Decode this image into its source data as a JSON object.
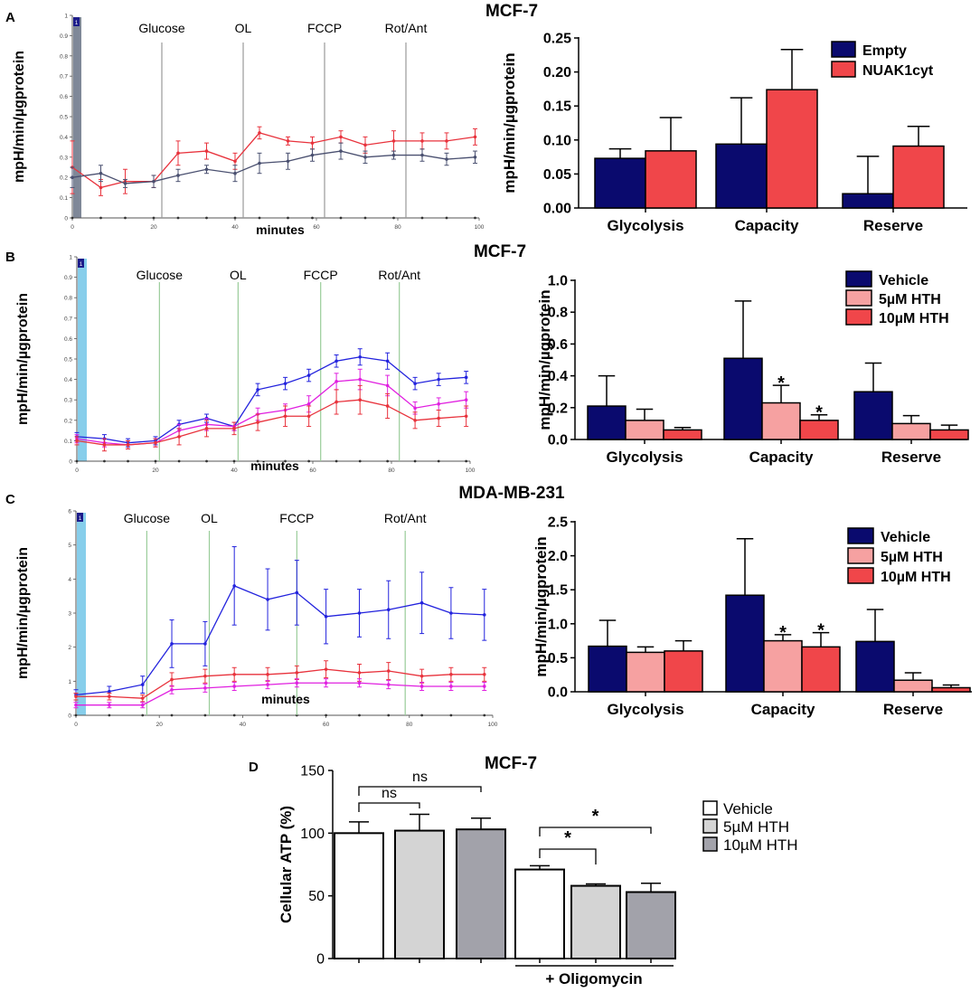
{
  "colors": {
    "navy": "#0a0a6e",
    "red": "#f0464a",
    "pink": "#f6a1a1",
    "seahorse_red": "#e8323c",
    "seahorse_gray": "#4a5070",
    "blue": "#2222dd",
    "magenta": "#e020e0",
    "marker_green": "#99cc99",
    "inj_blue": "#87ceeb",
    "inj_gray": "#7f8898",
    "atp_light": "#d4d4d4",
    "atp_dark": "#a2a2aa"
  },
  "panel_letters": [
    "A",
    "B",
    "C",
    "D"
  ],
  "chart_data": [
    {
      "id": "A-trace",
      "type": "line",
      "title": "",
      "xlabel": "minutes",
      "ylabel": "mpH/min/µgprotein",
      "xlim": [
        0,
        100
      ],
      "ylim": [
        0,
        1
      ],
      "xticks": [
        "0",
        "20",
        "40",
        "60",
        "80",
        "100"
      ],
      "yticks": [
        "0",
        "0.1",
        "0.2",
        "0.3",
        "0.4",
        "0.5",
        "0.6",
        "0.7",
        "0.8",
        "0.9",
        "1"
      ],
      "injections": [
        {
          "label": "Glucose",
          "x": 22
        },
        {
          "label": "OL",
          "x": 42
        },
        {
          "label": "FCCP",
          "x": 62
        },
        {
          "label": "Rot/Ant",
          "x": 82
        }
      ],
      "injection_badge": "1",
      "x": [
        0,
        7,
        13,
        20,
        26,
        33,
        40,
        46,
        53,
        59,
        66,
        72,
        79,
        86,
        92,
        99
      ],
      "series": [
        {
          "name": "NUAK1cyt",
          "color": "#e8323c",
          "values": [
            0.25,
            0.15,
            0.18,
            0.18,
            0.32,
            0.33,
            0.28,
            0.42,
            0.38,
            0.37,
            0.4,
            0.36,
            0.38,
            0.38,
            0.38,
            0.4
          ],
          "errors": [
            0.13,
            0.04,
            0.06,
            0.03,
            0.06,
            0.04,
            0.04,
            0.03,
            0.02,
            0.03,
            0.03,
            0.04,
            0.05,
            0.04,
            0.04,
            0.04
          ]
        },
        {
          "name": "Empty",
          "color": "#4a5070",
          "values": [
            0.2,
            0.22,
            0.17,
            0.18,
            0.21,
            0.24,
            0.22,
            0.27,
            0.28,
            0.31,
            0.33,
            0.3,
            0.31,
            0.31,
            0.29,
            0.3
          ],
          "errors": [
            0.05,
            0.04,
            0.02,
            0.03,
            0.03,
            0.02,
            0.04,
            0.05,
            0.04,
            0.03,
            0.04,
            0.03,
            0.02,
            0.03,
            0.03,
            0.03
          ]
        }
      ]
    },
    {
      "id": "A-bar",
      "type": "bar",
      "title": "MCF-7",
      "ylabel": "mpH/min/µgprotein",
      "ylim": [
        0,
        0.25
      ],
      "yticks": [
        "0.00",
        "0.05",
        "0.10",
        "0.15",
        "0.20",
        "0.25"
      ],
      "categories": [
        "Glycolysis",
        "Capacity",
        "Reserve"
      ],
      "series": [
        {
          "name": "Empty",
          "color": "#0a0a6e",
          "values": [
            0.073,
            0.094,
            0.021
          ],
          "errors": [
            0.014,
            0.068,
            0.055
          ]
        },
        {
          "name": "NUAK1cyt",
          "color": "#f0464a",
          "values": [
            0.084,
            0.174,
            0.091
          ],
          "errors": [
            0.049,
            0.059,
            0.029
          ]
        }
      ],
      "annotations": []
    },
    {
      "id": "B-trace",
      "type": "line",
      "title": "",
      "xlabel": "minutes",
      "ylabel": "mpH/min/µgprotein",
      "xlim": [
        0,
        100
      ],
      "ylim": [
        0,
        1
      ],
      "xticks": [
        "0",
        "20",
        "40",
        "60",
        "80",
        "100"
      ],
      "yticks": [
        "0",
        "0.1",
        "0.2",
        "0.3",
        "0.4",
        "0.5",
        "0.6",
        "0.7",
        "0.8",
        "0.9",
        "1"
      ],
      "injections": [
        {
          "label": "Glucose",
          "x": 21
        },
        {
          "label": "OL",
          "x": 41
        },
        {
          "label": "FCCP",
          "x": 62
        },
        {
          "label": "Rot/Ant",
          "x": 82
        }
      ],
      "injection_badge": "1",
      "x": [
        0,
        7,
        13,
        20,
        26,
        33,
        40,
        46,
        53,
        59,
        66,
        72,
        79,
        86,
        92,
        99
      ],
      "series": [
        {
          "name": "Vehicle",
          "color": "#2222dd",
          "values": [
            0.12,
            0.11,
            0.09,
            0.1,
            0.18,
            0.21,
            0.17,
            0.35,
            0.38,
            0.42,
            0.49,
            0.51,
            0.49,
            0.38,
            0.4,
            0.41
          ],
          "errors": [
            0.02,
            0.02,
            0.02,
            0.02,
            0.02,
            0.02,
            0.02,
            0.03,
            0.03,
            0.03,
            0.03,
            0.04,
            0.04,
            0.03,
            0.03,
            0.03
          ]
        },
        {
          "name": "5µM HTH",
          "color": "#e020e0",
          "values": [
            0.11,
            0.09,
            0.08,
            0.09,
            0.15,
            0.18,
            0.17,
            0.23,
            0.25,
            0.28,
            0.39,
            0.4,
            0.37,
            0.26,
            0.28,
            0.3
          ],
          "errors": [
            0.02,
            0.02,
            0.02,
            0.02,
            0.03,
            0.03,
            0.02,
            0.03,
            0.03,
            0.04,
            0.04,
            0.05,
            0.05,
            0.03,
            0.03,
            0.04
          ]
        },
        {
          "name": "10µM HTH",
          "color": "#e8323c",
          "values": [
            0.1,
            0.08,
            0.08,
            0.09,
            0.12,
            0.16,
            0.16,
            0.19,
            0.22,
            0.22,
            0.29,
            0.3,
            0.27,
            0.2,
            0.21,
            0.22
          ],
          "errors": [
            0.02,
            0.03,
            0.02,
            0.02,
            0.04,
            0.04,
            0.03,
            0.04,
            0.05,
            0.05,
            0.06,
            0.07,
            0.06,
            0.04,
            0.04,
            0.05
          ]
        }
      ]
    },
    {
      "id": "B-bar",
      "type": "bar",
      "title": "MCF-7",
      "ylabel": "mpH/min/µgprotein",
      "ylim": [
        0,
        1.0
      ],
      "yticks": [
        "0.0",
        "0.2",
        "0.4",
        "0.6",
        "0.8",
        "1.0"
      ],
      "categories": [
        "Glycolysis",
        "Capacity",
        "Reserve"
      ],
      "series": [
        {
          "name": "Vehicle",
          "color": "#0a0a6e",
          "values": [
            0.21,
            0.51,
            0.3
          ],
          "errors": [
            0.19,
            0.36,
            0.18
          ]
        },
        {
          "name": "5µM HTH",
          "color": "#f6a1a1",
          "values": [
            0.12,
            0.23,
            0.1
          ],
          "errors": [
            0.07,
            0.11,
            0.05
          ]
        },
        {
          "name": "10µM HTH",
          "color": "#f0464a",
          "values": [
            0.06,
            0.12,
            0.06
          ],
          "errors": [
            0.015,
            0.035,
            0.03
          ]
        }
      ],
      "annotations": [
        {
          "category": 1,
          "series": 1,
          "text": "*"
        },
        {
          "category": 1,
          "series": 2,
          "text": "*"
        }
      ]
    },
    {
      "id": "C-trace",
      "type": "line",
      "title": "",
      "xlabel": "minutes",
      "ylabel": "mpH/min/µgprotein",
      "xlim": [
        0,
        100
      ],
      "ylim": [
        0,
        6
      ],
      "xticks": [
        "0",
        "20",
        "40",
        "60",
        "80",
        "100"
      ],
      "yticks": [
        "0",
        "1",
        "2",
        "3",
        "4",
        "5",
        "6"
      ],
      "injections": [
        {
          "label": "Glucose",
          "x": 17
        },
        {
          "label": "OL",
          "x": 32
        },
        {
          "label": "FCCP",
          "x": 53
        },
        {
          "label": "Rot/Ant",
          "x": 79
        }
      ],
      "injection_badge": "1",
      "x": [
        0,
        8,
        16,
        23,
        31,
        38,
        46,
        53,
        60,
        68,
        75,
        83,
        90,
        98
      ],
      "series": [
        {
          "name": "Vehicle",
          "color": "#2222dd",
          "values": [
            0.6,
            0.7,
            0.9,
            2.1,
            2.1,
            3.8,
            3.4,
            3.6,
            2.9,
            3.0,
            3.1,
            3.3,
            3.0,
            2.95
          ],
          "errors": [
            0.15,
            0.15,
            0.25,
            0.7,
            0.65,
            1.15,
            0.9,
            0.95,
            0.8,
            0.7,
            0.85,
            0.9,
            0.75,
            0.75
          ]
        },
        {
          "name": "10µM HTH",
          "color": "#e8323c",
          "values": [
            0.55,
            0.55,
            0.5,
            1.05,
            1.15,
            1.2,
            1.2,
            1.25,
            1.35,
            1.25,
            1.3,
            1.15,
            1.2,
            1.2
          ],
          "errors": [
            0.1,
            0.1,
            0.1,
            0.2,
            0.2,
            0.2,
            0.2,
            0.2,
            0.25,
            0.25,
            0.25,
            0.2,
            0.2,
            0.2
          ]
        },
        {
          "name": "5µM HTH",
          "color": "#e020e0",
          "values": [
            0.3,
            0.3,
            0.3,
            0.75,
            0.8,
            0.85,
            0.9,
            0.95,
            0.95,
            0.95,
            0.9,
            0.85,
            0.85,
            0.85
          ],
          "errors": [
            0.08,
            0.08,
            0.08,
            0.12,
            0.12,
            0.12,
            0.12,
            0.12,
            0.12,
            0.12,
            0.12,
            0.12,
            0.12,
            0.12
          ]
        }
      ]
    },
    {
      "id": "C-bar",
      "type": "bar",
      "title": "MDA-MB-231",
      "ylabel": "mpH/min/µgprotein",
      "ylim": [
        0,
        2.5
      ],
      "yticks": [
        "0.0",
        "0.5",
        "1.0",
        "1.5",
        "2.0",
        "2.5"
      ],
      "categories": [
        "Glycolysis",
        "Capacity",
        "Reserve"
      ],
      "series": [
        {
          "name": "Vehicle",
          "color": "#0a0a6e",
          "values": [
            0.67,
            1.42,
            0.74
          ],
          "errors": [
            0.38,
            0.83,
            0.47
          ]
        },
        {
          "name": "5µM HTH",
          "color": "#f6a1a1",
          "values": [
            0.58,
            0.75,
            0.17
          ],
          "errors": [
            0.08,
            0.09,
            0.11
          ]
        },
        {
          "name": "10µM HTH",
          "color": "#f0464a",
          "values": [
            0.6,
            0.66,
            0.06
          ],
          "errors": [
            0.15,
            0.21,
            0.04
          ]
        }
      ],
      "annotations": [
        {
          "category": 1,
          "series": 1,
          "text": "*"
        },
        {
          "category": 1,
          "series": 2,
          "text": "*"
        }
      ]
    },
    {
      "id": "D-bar",
      "type": "bar",
      "title": "MCF-7",
      "ylabel": "Cellular ATP (%)",
      "ylim": [
        0,
        150
      ],
      "yticks": [
        "0",
        "50",
        "100",
        "150"
      ],
      "groups": [
        {
          "label": "",
          "bars": [
            0,
            1,
            2
          ]
        },
        {
          "label": "+ Oligomycin",
          "bars": [
            3,
            4,
            5
          ]
        }
      ],
      "bars": [
        {
          "series": "Vehicle",
          "value": 100,
          "error": 9
        },
        {
          "series": "5µM HTH",
          "value": 102,
          "error": 13
        },
        {
          "series": "10µM HTH",
          "value": 103,
          "error": 9
        },
        {
          "series": "Vehicle",
          "value": 71,
          "error": 3
        },
        {
          "series": "5µM HTH",
          "value": 58,
          "error": 1.5
        },
        {
          "series": "10µM HTH",
          "value": 53,
          "error": 7
        }
      ],
      "legend": [
        {
          "name": "Vehicle",
          "color": "#ffffff"
        },
        {
          "name": "5µM HTH",
          "color": "#d4d4d4"
        },
        {
          "name": "10µM HTH",
          "color": "#a2a2aa"
        }
      ],
      "comparisons": [
        {
          "from": 0,
          "to": 1,
          "text": "ns"
        },
        {
          "from": 0,
          "to": 2,
          "text": "ns"
        },
        {
          "from": 3,
          "to": 4,
          "text": "*"
        },
        {
          "from": 3,
          "to": 5,
          "text": "*"
        }
      ]
    }
  ]
}
